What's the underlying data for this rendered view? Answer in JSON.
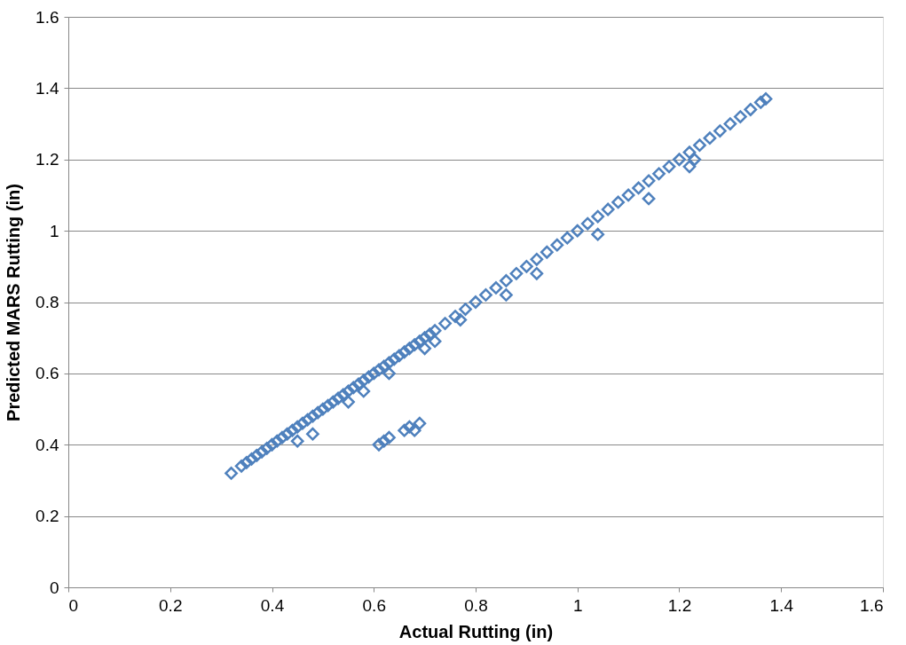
{
  "chart_data": {
    "type": "scatter",
    "xlabel": "Actual Rutting (in)",
    "ylabel": "Predicted MARS Rutting (in)",
    "xlim": [
      0,
      1.6
    ],
    "ylim": [
      0,
      1.6
    ],
    "xticks": [
      0,
      0.2,
      0.4,
      0.6,
      0.8,
      1,
      1.2,
      1.4,
      1.6
    ],
    "yticks": [
      0,
      0.2,
      0.4,
      0.6,
      0.8,
      1,
      1.2,
      1.4,
      1.6
    ],
    "grid": "y",
    "marker": "diamond",
    "legend": false,
    "series": [
      {
        "color": "#4f81bd",
        "x": [
          0.32,
          0.34,
          0.35,
          0.36,
          0.37,
          0.38,
          0.39,
          0.4,
          0.41,
          0.42,
          0.43,
          0.44,
          0.45,
          0.46,
          0.47,
          0.48,
          0.49,
          0.5,
          0.51,
          0.52,
          0.53,
          0.54,
          0.55,
          0.56,
          0.57,
          0.58,
          0.59,
          0.6,
          0.61,
          0.62,
          0.63,
          0.64,
          0.65,
          0.66,
          0.67,
          0.68,
          0.69,
          0.7,
          0.71,
          0.72,
          0.74,
          0.76,
          0.78,
          0.8,
          0.82,
          0.84,
          0.86,
          0.88,
          0.9,
          0.92,
          0.94,
          0.96,
          0.98,
          1.0,
          1.02,
          1.04,
          1.06,
          1.08,
          1.1,
          1.12,
          1.14,
          1.16,
          1.18,
          1.2,
          1.22,
          1.24,
          1.26,
          1.28,
          1.3,
          1.32,
          1.34,
          1.36,
          1.37,
          0.45,
          0.48,
          0.55,
          0.58,
          0.63,
          0.7,
          0.72,
          0.77,
          0.86,
          0.92,
          1.04,
          1.14,
          1.22,
          1.23,
          0.61,
          0.62,
          0.63,
          0.66,
          0.67,
          0.68,
          0.69
        ],
        "values": [
          0.32,
          0.34,
          0.35,
          0.36,
          0.37,
          0.38,
          0.39,
          0.4,
          0.41,
          0.42,
          0.43,
          0.44,
          0.45,
          0.46,
          0.47,
          0.48,
          0.49,
          0.5,
          0.51,
          0.52,
          0.53,
          0.54,
          0.55,
          0.56,
          0.57,
          0.58,
          0.59,
          0.6,
          0.61,
          0.62,
          0.63,
          0.64,
          0.65,
          0.66,
          0.67,
          0.68,
          0.69,
          0.7,
          0.71,
          0.72,
          0.74,
          0.76,
          0.78,
          0.8,
          0.82,
          0.84,
          0.86,
          0.88,
          0.9,
          0.92,
          0.94,
          0.96,
          0.98,
          1.0,
          1.02,
          1.04,
          1.06,
          1.08,
          1.1,
          1.12,
          1.14,
          1.16,
          1.18,
          1.2,
          1.22,
          1.24,
          1.26,
          1.28,
          1.3,
          1.32,
          1.34,
          1.36,
          1.37,
          0.41,
          0.43,
          0.52,
          0.55,
          0.6,
          0.67,
          0.69,
          0.75,
          0.82,
          0.88,
          0.99,
          1.09,
          1.18,
          1.2,
          0.4,
          0.41,
          0.42,
          0.44,
          0.45,
          0.44,
          0.46
        ]
      }
    ]
  }
}
